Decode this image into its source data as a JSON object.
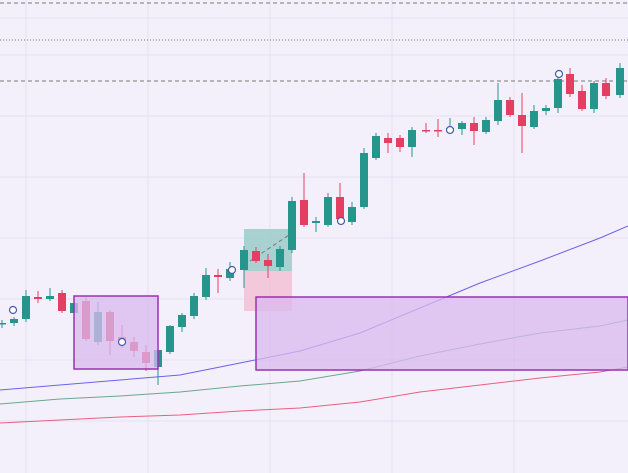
{
  "chart_data": {
    "type": "candlestick",
    "ylim": [
      0,
      473
    ],
    "grid": true,
    "colors": {
      "background": "#f3f0fb",
      "up": "#26968c",
      "down": "#e43f62",
      "grid": "#e4e0f0",
      "ma_fast": "#6a63e6",
      "ma_mid": "#6aa88a",
      "ma_slow": "#e8607e",
      "zone_fill": "#d9b9ee",
      "zone_border": "#9b30b5",
      "marker": "#4a5aa8",
      "guide": "#777777",
      "pos_profit": "#9ccbc9",
      "pos_loss": "#f1c1d4"
    },
    "candles": [
      {
        "x": 2,
        "o": 149,
        "h": 153,
        "l": 145,
        "c": 150
      },
      {
        "x": 14,
        "o": 150,
        "h": 156,
        "l": 147,
        "c": 154
      },
      {
        "x": 26,
        "o": 154,
        "h": 183,
        "l": 151,
        "c": 177
      },
      {
        "x": 38,
        "o": 176,
        "h": 182,
        "l": 170,
        "c": 174
      },
      {
        "x": 50,
        "o": 174,
        "h": 185,
        "l": 172,
        "c": 177
      },
      {
        "x": 62,
        "o": 180,
        "h": 183,
        "l": 160,
        "c": 162
      },
      {
        "x": 74,
        "o": 160,
        "h": 172,
        "l": 158,
        "c": 170
      },
      {
        "x": 86,
        "o": 172,
        "h": 176,
        "l": 132,
        "c": 134
      },
      {
        "x": 98,
        "o": 131,
        "h": 171,
        "l": 128,
        "c": 161
      },
      {
        "x": 110,
        "o": 161,
        "h": 163,
        "l": 118,
        "c": 132
      },
      {
        "x": 122,
        "o": 136,
        "h": 148,
        "l": 125,
        "c": 130
      },
      {
        "x": 134,
        "o": 131,
        "h": 136,
        "l": 116,
        "c": 122
      },
      {
        "x": 146,
        "o": 121,
        "h": 128,
        "l": 102,
        "c": 110
      },
      {
        "x": 158,
        "o": 106,
        "h": 126,
        "l": 88,
        "c": 123
      },
      {
        "x": 170,
        "o": 121,
        "h": 148,
        "l": 119,
        "c": 147
      },
      {
        "x": 182,
        "o": 146,
        "h": 160,
        "l": 141,
        "c": 158
      },
      {
        "x": 194,
        "o": 157,
        "h": 180,
        "l": 154,
        "c": 177
      },
      {
        "x": 206,
        "o": 176,
        "h": 205,
        "l": 173,
        "c": 198
      },
      {
        "x": 218,
        "o": 198,
        "h": 204,
        "l": 180,
        "c": 196
      },
      {
        "x": 230,
        "o": 195,
        "h": 211,
        "l": 192,
        "c": 204
      },
      {
        "x": 244,
        "o": 203,
        "h": 227,
        "l": 185,
        "c": 223
      },
      {
        "x": 256,
        "o": 222,
        "h": 226,
        "l": 210,
        "c": 212
      },
      {
        "x": 268,
        "o": 213,
        "h": 219,
        "l": 195,
        "c": 207
      },
      {
        "x": 280,
        "o": 206,
        "h": 227,
        "l": 202,
        "c": 224
      },
      {
        "x": 292,
        "o": 223,
        "h": 276,
        "l": 220,
        "c": 272
      },
      {
        "x": 304,
        "o": 273,
        "h": 300,
        "l": 246,
        "c": 248
      },
      {
        "x": 316,
        "o": 250,
        "h": 256,
        "l": 241,
        "c": 252
      },
      {
        "x": 328,
        "o": 248,
        "h": 280,
        "l": 246,
        "c": 276
      },
      {
        "x": 340,
        "o": 276,
        "h": 290,
        "l": 250,
        "c": 254
      },
      {
        "x": 352,
        "o": 251,
        "h": 271,
        "l": 248,
        "c": 266
      },
      {
        "x": 364,
        "o": 266,
        "h": 325,
        "l": 264,
        "c": 320
      },
      {
        "x": 376,
        "o": 315,
        "h": 340,
        "l": 313,
        "c": 337
      },
      {
        "x": 388,
        "o": 335,
        "h": 340,
        "l": 320,
        "c": 330
      },
      {
        "x": 400,
        "o": 335,
        "h": 338,
        "l": 321,
        "c": 326
      },
      {
        "x": 412,
        "o": 326,
        "h": 346,
        "l": 316,
        "c": 343
      },
      {
        "x": 426,
        "o": 343,
        "h": 350,
        "l": 340,
        "c": 342
      },
      {
        "x": 438,
        "o": 343,
        "h": 354,
        "l": 336,
        "c": 342
      },
      {
        "x": 450,
        "o": 344,
        "h": 355,
        "l": 340,
        "c": 345
      },
      {
        "x": 462,
        "o": 344,
        "h": 352,
        "l": 338,
        "c": 350
      },
      {
        "x": 474,
        "o": 350,
        "h": 356,
        "l": 328,
        "c": 342
      },
      {
        "x": 486,
        "o": 341,
        "h": 356,
        "l": 339,
        "c": 353
      },
      {
        "x": 498,
        "o": 352,
        "h": 390,
        "l": 348,
        "c": 373
      },
      {
        "x": 510,
        "o": 373,
        "h": 376,
        "l": 356,
        "c": 358
      },
      {
        "x": 522,
        "o": 358,
        "h": 380,
        "l": 320,
        "c": 347
      },
      {
        "x": 534,
        "o": 346,
        "h": 368,
        "l": 344,
        "c": 362
      },
      {
        "x": 546,
        "o": 362,
        "h": 368,
        "l": 358,
        "c": 365
      },
      {
        "x": 558,
        "o": 365,
        "h": 403,
        "l": 360,
        "c": 394
      },
      {
        "x": 570,
        "o": 399,
        "h": 405,
        "l": 376,
        "c": 379
      },
      {
        "x": 582,
        "o": 382,
        "h": 388,
        "l": 362,
        "c": 364
      },
      {
        "x": 594,
        "o": 364,
        "h": 392,
        "l": 360,
        "c": 390
      },
      {
        "x": 606,
        "o": 390,
        "h": 395,
        "l": 374,
        "c": 377
      },
      {
        "x": 620,
        "o": 378,
        "h": 410,
        "l": 375,
        "c": 405
      }
    ],
    "moving_averages": [
      {
        "key": "ma_fast",
        "points": [
          [
            0,
            83
          ],
          [
            60,
            88
          ],
          [
            120,
            93
          ],
          [
            180,
            98
          ],
          [
            240,
            110
          ],
          [
            300,
            122
          ],
          [
            360,
            140
          ],
          [
            420,
            165
          ],
          [
            480,
            190
          ],
          [
            540,
            212
          ],
          [
            600,
            235
          ],
          [
            628,
            247
          ]
        ]
      },
      {
        "key": "ma_mid",
        "points": [
          [
            0,
            69
          ],
          [
            60,
            74
          ],
          [
            120,
            77
          ],
          [
            180,
            81
          ],
          [
            240,
            87
          ],
          [
            300,
            92
          ],
          [
            360,
            102
          ],
          [
            420,
            117
          ],
          [
            480,
            129
          ],
          [
            540,
            140
          ],
          [
            600,
            147
          ],
          [
            628,
            153
          ]
        ]
      },
      {
        "key": "ma_slow",
        "points": [
          [
            0,
            50
          ],
          [
            60,
            53
          ],
          [
            120,
            56
          ],
          [
            180,
            58
          ],
          [
            240,
            62
          ],
          [
            300,
            65
          ],
          [
            360,
            71
          ],
          [
            420,
            81
          ],
          [
            480,
            88
          ],
          [
            540,
            95
          ],
          [
            600,
            101
          ],
          [
            628,
            106
          ]
        ]
      }
    ],
    "zones": [
      {
        "x0": 74,
        "x1": 158,
        "y0": 104,
        "y1": 177
      },
      {
        "x0": 256,
        "x1": 628,
        "y0": 103,
        "y1": 176
      }
    ],
    "position_tool": {
      "x0": 244,
      "x1": 292,
      "entry": 202,
      "target": 244,
      "stop": 162
    },
    "markers": [
      {
        "x": 13,
        "y": 163
      },
      {
        "x": 122,
        "y": 131
      },
      {
        "x": 232,
        "y": 203
      },
      {
        "x": 341,
        "y": 252
      },
      {
        "x": 450,
        "y": 343
      },
      {
        "x": 559,
        "y": 399
      }
    ],
    "h_lines": [
      {
        "y": 470,
        "style": "dashed"
      },
      {
        "y": 433,
        "style": "dotted"
      },
      {
        "y": 392,
        "style": "dashed"
      }
    ]
  }
}
